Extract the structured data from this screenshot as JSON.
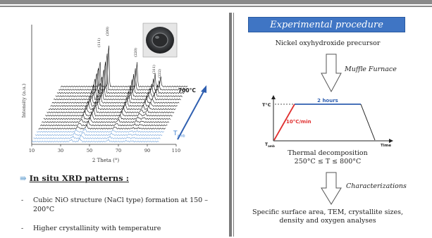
{
  "chart_data": {
    "type": "line",
    "xlabel": "2 Theta (°)",
    "ylabel": "Intensity (a.u.)",
    "x_ticks": [
      "10",
      "30",
      "50",
      "70",
      "90",
      "110"
    ],
    "peak_labels": [
      "(111)",
      "(200)",
      "(220)",
      "(311)",
      "(222)"
    ],
    "peaks_2theta": [
      37.3,
      43.3,
      62.9,
      75.4,
      79.4
    ],
    "temperature_label": "700°C",
    "ambient_label": "T",
    "ambient_sub": "amb"
  },
  "left": {
    "section_title": "In situ XRD patterns  :",
    "bullets": [
      {
        "dash": "-",
        "text": "Cubic NiO structure (NaCl type) formation at 150 – 200°C"
      },
      {
        "dash": "-",
        "text": "Higher crystallinity with temperature"
      }
    ]
  },
  "right": {
    "banner": "Experimental procedure",
    "precursor": "Nickel oxyhydroxide precursor",
    "muffle": "Muffle Furnace",
    "profile": {
      "t_label": "T°C",
      "hours_label": "2 hours",
      "rate_label": "10°C/min",
      "time_label": "Time",
      "tamb_label": "T",
      "tamb_sub": "amb",
      "colors": {
        "ramp": "#e03030",
        "plateau": "#2f5fb0"
      }
    },
    "decomposition_1": "Thermal  decomposition",
    "decomposition_2": "250°C ≤ T ≤ 800°C",
    "characterizations": "Characterizations",
    "analyses_1": "Specific surface area, TEM, crystallite sizes,",
    "analyses_2": "density and oxygen analyses"
  }
}
